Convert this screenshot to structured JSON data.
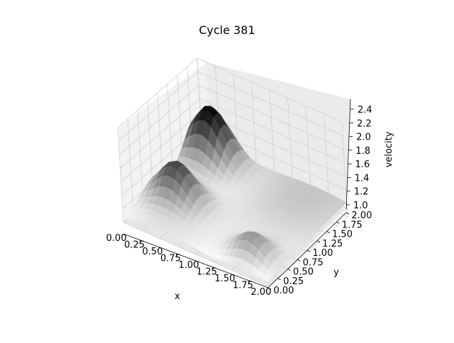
{
  "title": "Cycle 381",
  "chart_data": {
    "type": "surface3d",
    "title": "Cycle 381",
    "xlabel": "x",
    "ylabel": "y",
    "zlabel": "velocity",
    "xlim": [
      0,
      2
    ],
    "ylim": [
      0,
      2
    ],
    "zlim": [
      1.0,
      2.4
    ],
    "x_ticks": [
      "0.00",
      "0.25",
      "0.50",
      "0.75",
      "1.00",
      "1.25",
      "1.50",
      "1.75",
      "2.00"
    ],
    "y_ticks": [
      "0.00",
      "0.25",
      "0.50",
      "0.75",
      "1.00",
      "1.25",
      "1.50",
      "1.75",
      "2.00"
    ],
    "z_ticks": [
      "1.0",
      "1.2",
      "1.4",
      "1.6",
      "1.8",
      "2.0",
      "2.2",
      "2.4"
    ],
    "surface_description": "Mostly flat velocity near 1.0–1.2 with bumps: a dark ridge near x=0.25–0.5, y=0.5–1.0 and near x=1.5–1.75, y=0.25–0.5; a peak around x=0.25, y=1.75.",
    "colormap": "gray_r",
    "grid": true
  }
}
